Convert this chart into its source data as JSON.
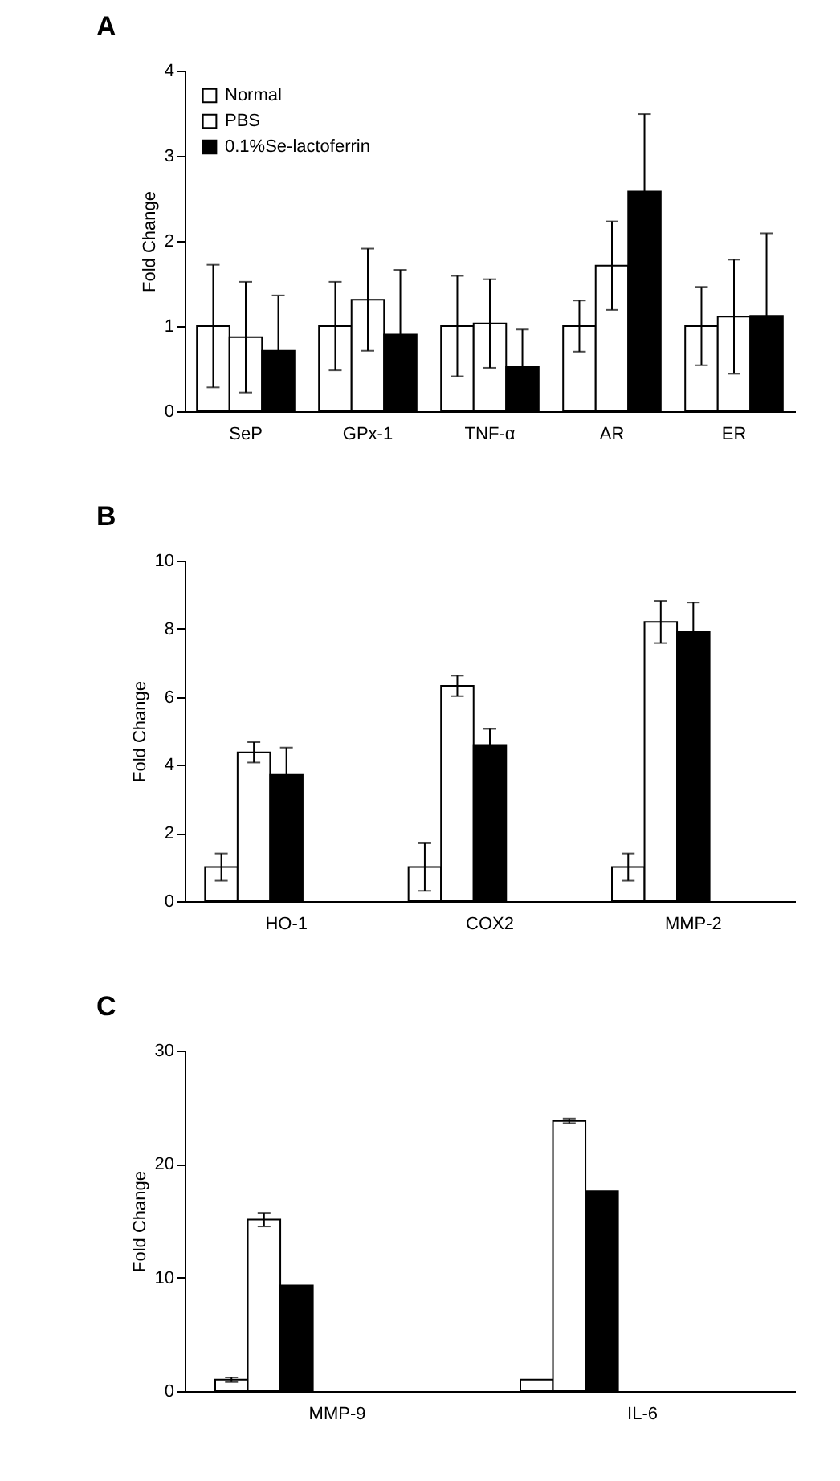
{
  "chart_data": [
    {
      "type": "bar",
      "title": "A",
      "ylabel": "Fold Change",
      "categories": [
        "SeP",
        "GPx-1",
        "TNF-α",
        "AR",
        "ER"
      ],
      "ylim": [
        0,
        4
      ],
      "yticks": [
        0,
        1,
        2,
        3,
        4
      ],
      "legend": "top left",
      "series": [
        {
          "name": "Normal",
          "color": "#ffffff",
          "values": [
            1,
            1,
            1,
            1,
            1
          ],
          "errors": [
            0.72,
            0.52,
            0.59,
            0.3,
            0.46
          ]
        },
        {
          "name": "PBS",
          "color": "#ffffff",
          "values": [
            0.87,
            1.31,
            1.03,
            1.71,
            1.11
          ],
          "errors": [
            0.65,
            0.6,
            0.52,
            0.52,
            0.67
          ]
        },
        {
          "name": "0.1%Se-lactoferrin",
          "color": "#000000",
          "values": [
            0.71,
            0.9,
            0.52,
            2.58,
            1.12
          ],
          "errors": [
            0.65,
            0.76,
            0.44,
            0.91,
            0.97
          ]
        }
      ]
    },
    {
      "type": "bar",
      "title": "B",
      "ylabel": "Fold Change",
      "categories": [
        "HO-1",
        "COX2",
        "MMP-2"
      ],
      "ylim": [
        0,
        10
      ],
      "yticks": [
        0,
        2,
        4,
        6,
        8,
        10
      ],
      "legend": "top left",
      "series": [
        {
          "name": "Normal",
          "color": "#ffffff",
          "values": [
            1,
            1,
            1
          ],
          "errors": [
            0.4,
            0.7,
            0.4
          ]
        },
        {
          "name": "PBS",
          "color": "#ffffff",
          "values": [
            4.37,
            6.32,
            8.2
          ],
          "errors": [
            0.3,
            0.3,
            0.62
          ]
        },
        {
          "name": "0.1%Se-lactoferrin",
          "color": "#000000",
          "values": [
            3.71,
            4.59,
            7.9
          ],
          "errors": [
            0.8,
            0.47,
            0.87
          ]
        }
      ]
    },
    {
      "type": "bar",
      "title": "C",
      "ylabel": "Fold Change",
      "categories": [
        "MMP-9",
        "IL-6"
      ],
      "ylim": [
        0,
        30
      ],
      "yticks": [
        0,
        10,
        20,
        30
      ],
      "legend": "top left",
      "series": [
        {
          "name": "Normal",
          "color": "#ffffff",
          "values": [
            1,
            1
          ],
          "errors": [
            0.2,
            null
          ]
        },
        {
          "name": "PBS",
          "color": "#ffffff",
          "values": [
            15.1,
            23.8
          ],
          "errors": [
            0.6,
            0.2
          ]
        },
        {
          "name": "0.1%Se-lactoferrin",
          "color": "#000000",
          "values": [
            9.3,
            17.6
          ]
        }
      ]
    }
  ]
}
